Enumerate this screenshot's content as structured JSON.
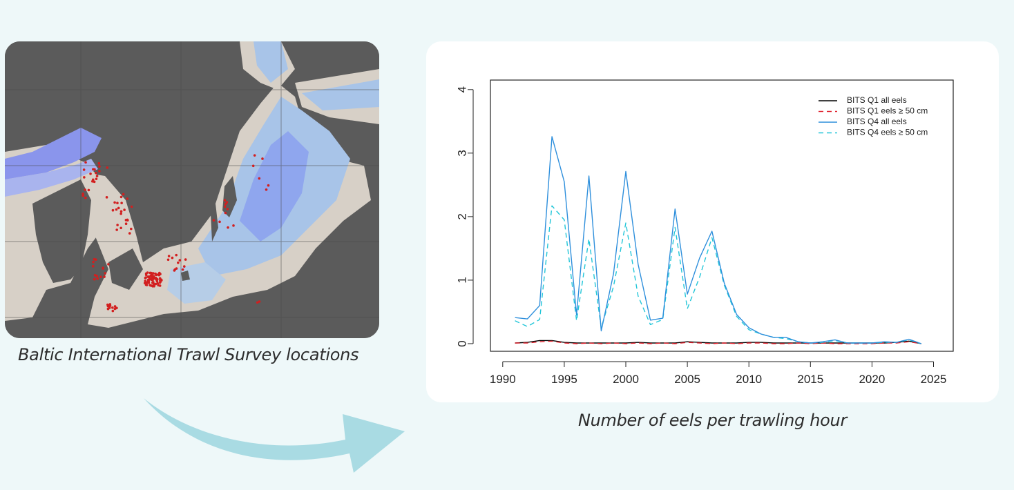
{
  "map": {
    "caption": "Baltic International Trawl Survey locations",
    "colors": {
      "land": "#5b5b5b",
      "shallow": "#d9d2c9",
      "mid": "#a7c6e6",
      "deep": "#7f8ff0",
      "points": "#d21f1f"
    },
    "icon": "map-image"
  },
  "arrow": {
    "icon": "curved-arrow-icon",
    "color": "#a9dbe3"
  },
  "chart": {
    "caption": "Number of eels per trawling hour"
  },
  "chart_data": {
    "type": "line",
    "title": "",
    "xlabel": "",
    "ylabel": "",
    "xlim": [
      1990,
      2025
    ],
    "ylim": [
      0,
      4
    ],
    "x_ticks": [
      "1990",
      "1995",
      "2000",
      "2005",
      "2010",
      "2015",
      "2020",
      "2025"
    ],
    "y_ticks": [
      "0",
      "1",
      "2",
      "3",
      "4"
    ],
    "legend_position": "top-right",
    "grid": false,
    "x": [
      1991,
      1992,
      1993,
      1994,
      1995,
      1996,
      1997,
      1998,
      1999,
      2000,
      2001,
      2002,
      2003,
      2004,
      2005,
      2006,
      2007,
      2008,
      2009,
      2010,
      2011,
      2012,
      2013,
      2014,
      2015,
      2016,
      2017,
      2018,
      2019,
      2020,
      2021,
      2022,
      2023,
      2024
    ],
    "series": [
      {
        "name": "BITS Q1 all eels",
        "color": "#000000",
        "dash": "solid",
        "values": [
          0.01,
          0.02,
          0.05,
          0.05,
          0.02,
          0.01,
          0.01,
          0.01,
          0.01,
          0.01,
          0.02,
          0.01,
          0.01,
          0.01,
          0.03,
          0.02,
          0.01,
          0.01,
          0.01,
          0.02,
          0.02,
          0.01,
          0.01,
          0.01,
          0.01,
          0.01,
          0.01,
          0.01,
          0.01,
          0.01,
          0.01,
          0.02,
          0.04,
          0.0
        ]
      },
      {
        "name": "BITS Q1 eels ≥ 50 cm",
        "color": "#e0202c",
        "dash": "dashed",
        "values": [
          0.01,
          0.01,
          0.03,
          0.04,
          0.01,
          0.0,
          0.01,
          0.0,
          0.01,
          0.0,
          0.01,
          0.0,
          0.01,
          0.0,
          0.02,
          0.01,
          0.0,
          0.01,
          0.0,
          0.01,
          0.01,
          0.0,
          0.0,
          0.01,
          0.0,
          0.01,
          0.0,
          0.0,
          0.0,
          0.0,
          0.01,
          0.01,
          0.03,
          0.0
        ]
      },
      {
        "name": "BITS Q4 all eels",
        "color": "#2e8fdc",
        "dash": "solid",
        "values": [
          0.41,
          0.39,
          0.6,
          3.26,
          2.55,
          0.45,
          2.64,
          0.2,
          1.1,
          2.71,
          1.25,
          0.37,
          0.4,
          2.12,
          0.78,
          1.35,
          1.77,
          0.95,
          0.46,
          0.25,
          0.15,
          0.1,
          0.1,
          0.03,
          0.01,
          0.03,
          0.06,
          0.01,
          0.01,
          0.01,
          0.03,
          0.02,
          0.07,
          0.0
        ]
      },
      {
        "name": "BITS Q4 eels ≥ 50 cm",
        "color": "#21c6d8",
        "dash": "dashed",
        "values": [
          0.36,
          0.27,
          0.38,
          2.17,
          1.95,
          0.36,
          1.65,
          0.25,
          0.9,
          1.9,
          0.75,
          0.3,
          0.38,
          1.83,
          0.55,
          1.05,
          1.67,
          0.92,
          0.43,
          0.22,
          0.15,
          0.1,
          0.08,
          0.03,
          0.01,
          0.02,
          0.05,
          0.01,
          0.01,
          0.01,
          0.02,
          0.02,
          0.06,
          0.0
        ]
      }
    ]
  }
}
